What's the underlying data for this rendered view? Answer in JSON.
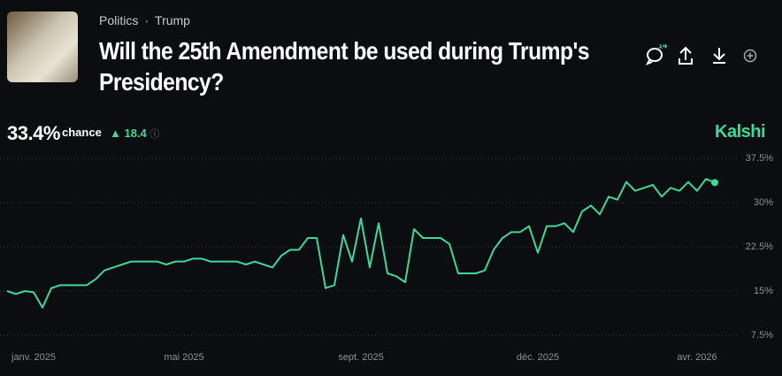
{
  "header": {
    "category": "Politics",
    "tag": "Trump",
    "title": "Will the 25th Amendment be used during Trump's Presidency?",
    "comments": "14",
    "chance": "33.4%",
    "chance_label": "chance",
    "change": "18.4",
    "brand": "Kalshi"
  },
  "chart_data": {
    "type": "line",
    "categories": [
      null,
      null,
      null,
      "janv. 2025",
      null,
      null,
      null,
      null,
      null,
      null,
      null,
      null,
      null,
      null,
      null,
      null,
      null,
      null,
      null,
      null,
      "mai 2025",
      null,
      null,
      null,
      null,
      null,
      null,
      null,
      null,
      null,
      null,
      null,
      null,
      null,
      null,
      null,
      null,
      null,
      null,
      null,
      "sept. 2025",
      null,
      null,
      null,
      null,
      null,
      null,
      null,
      null,
      null,
      null,
      null,
      null,
      null,
      null,
      null,
      null,
      null,
      null,
      null,
      "déc. 2025",
      null,
      null,
      null,
      null,
      null,
      null,
      null,
      null,
      null,
      null,
      null,
      null,
      null,
      null,
      null,
      null,
      null,
      "avr. 2026",
      null,
      null
    ],
    "series": [
      {
        "color": "#3ed99a",
        "values": [
          15,
          14.5,
          15,
          14.8,
          12.2,
          15.5,
          16,
          16,
          16,
          16,
          17,
          18.5,
          19,
          19.5,
          20,
          20,
          20,
          20,
          19.5,
          20,
          20,
          20.5,
          20.5,
          20,
          20,
          20,
          20,
          19.5,
          20,
          19.5,
          19,
          21,
          22,
          22,
          24,
          24,
          15.5,
          16,
          24.5,
          20,
          27.3,
          19,
          26.5,
          18,
          17.5,
          16.5,
          25.5,
          24,
          24,
          24,
          23,
          18,
          18,
          18,
          18.5,
          22,
          24,
          25,
          25,
          26,
          21.5,
          26,
          26,
          26.5,
          25,
          28.5,
          29.5,
          28,
          31,
          30.5,
          33.5,
          32,
          32.5,
          33,
          31,
          32.5,
          32,
          33.5,
          32,
          34,
          33.4
        ]
      }
    ],
    "ylim": [
      7.5,
      37.5
    ],
    "yticks": [
      {
        "value": 37.5,
        "label": "37.5%"
      },
      {
        "value": 30,
        "label": "30%"
      },
      {
        "value": 22.5,
        "label": "22.5%"
      },
      {
        "value": 15,
        "label": "15%"
      },
      {
        "value": 7.5,
        "label": "7.5%"
      }
    ],
    "grid": true
  }
}
